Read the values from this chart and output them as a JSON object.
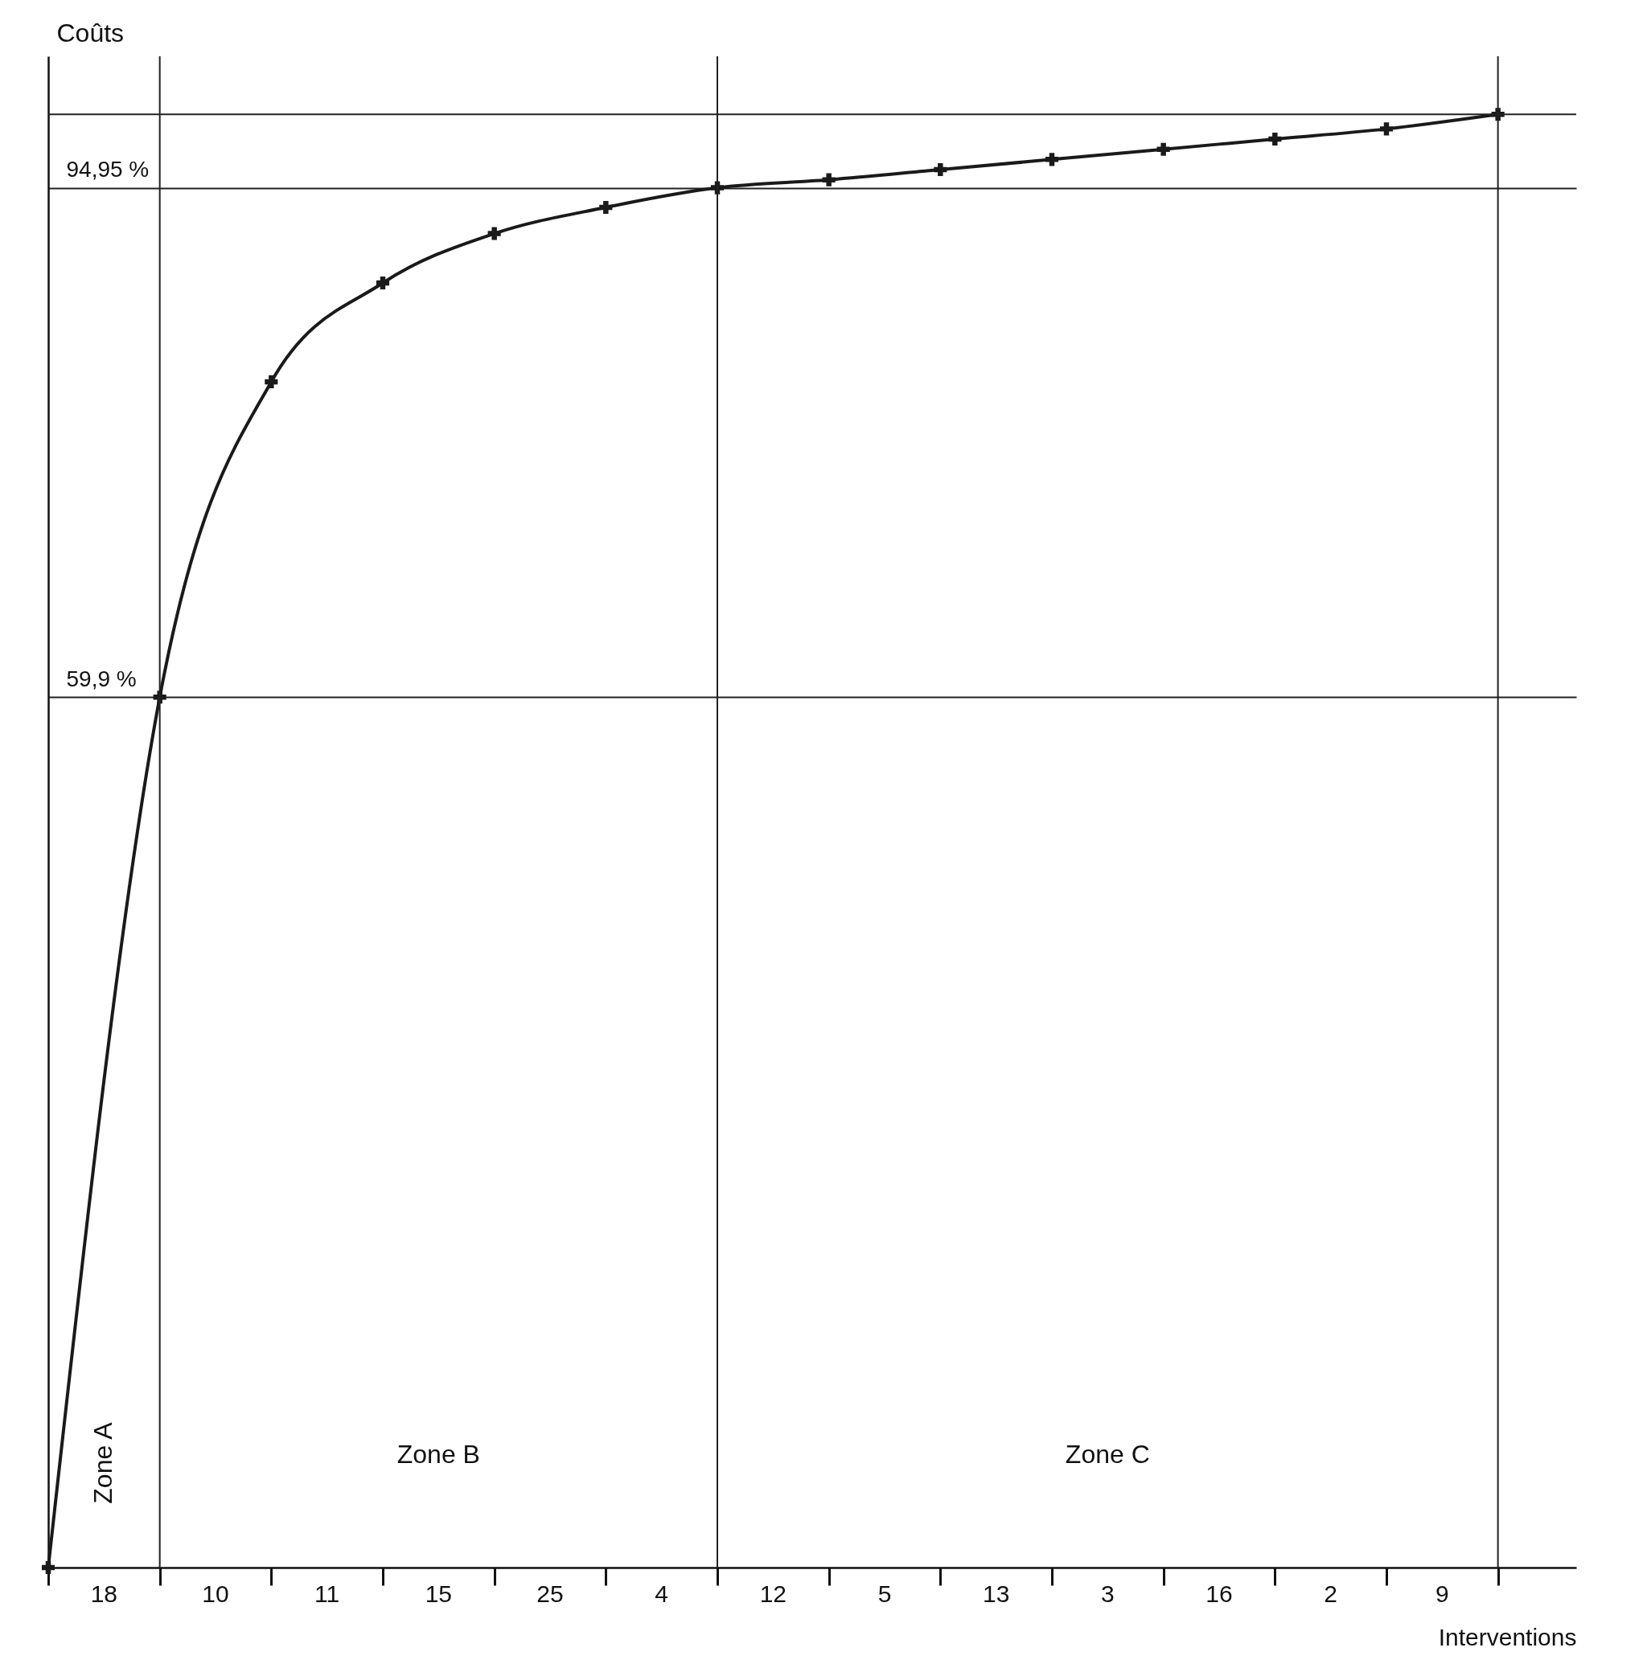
{
  "chart_data": {
    "type": "line",
    "xlabel": "Interventions",
    "ylabel": "Coûts",
    "categories": [
      null,
      null,
      null,
      null,
      null,
      null,
      null,
      null,
      null,
      null,
      null,
      null,
      null,
      null
    ],
    "series": [
      {
        "color": "#1a1a1a",
        "values": [
          0,
          59.9,
          81.6,
          88.4,
          91.8,
          93.6,
          94.95,
          95.5,
          96.2,
          96.9,
          97.6,
          98.3,
          99.0,
          100
        ]
      }
    ],
    "annotations": [
      "18",
      "10",
      "11",
      "15",
      "25",
      "4",
      "12",
      "5",
      "13",
      "3",
      "16",
      "2",
      "9",
      "Zone A",
      "Zone B",
      "Zone C"
    ],
    "ylim": [
      0,
      104
    ],
    "yticks": [
      {
        "value": 59.9,
        "label": "59,9 %"
      },
      {
        "value": 94.95,
        "label": "94,95 %"
      }
    ],
    "ref_lines": [
      {
        "axis": "y",
        "value": 100
      }
    ],
    "grid": true,
    "marker": "cross"
  }
}
